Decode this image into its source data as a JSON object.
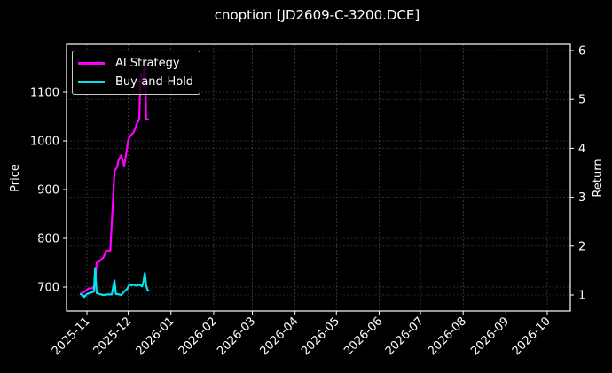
{
  "chart_data": {
    "type": "line",
    "title": "cnoption [JD2609-C-3200.DCE]",
    "xlabel": "",
    "ylabel": "Price",
    "ylabel_right": "Return",
    "ylim": [
      652,
      1192
    ],
    "ylim_right": [
      0.69,
      6.08
    ],
    "grid": true,
    "legend_position": "upper left",
    "x_ticks": [
      "2025-11",
      "2025-12",
      "2026-01",
      "2026-02",
      "2026-03",
      "2026-04",
      "2026-05",
      "2026-06",
      "2026-07",
      "2026-08",
      "2026-09",
      "2026-10"
    ],
    "y_ticks": [
      700,
      800,
      900,
      1000,
      1100
    ],
    "y_ticks_right": [
      1,
      2,
      3,
      4,
      5,
      6
    ],
    "series": [
      {
        "name": "AI Strategy",
        "color": "#ff00ff",
        "axis": "right",
        "x": [
          "2025-10-27",
          "2025-10-30",
          "2025-11-02",
          "2025-11-05",
          "2025-11-07",
          "2025-11-08",
          "2025-11-10",
          "2025-11-13",
          "2025-11-15",
          "2025-11-18",
          "2025-11-21",
          "2025-11-23",
          "2025-11-24",
          "2025-11-26",
          "2025-11-28",
          "2025-11-30",
          "2025-12-01",
          "2025-12-02",
          "2025-12-03",
          "2025-12-05",
          "2025-12-07",
          "2025-12-09",
          "2025-12-10",
          "2025-12-12",
          "2025-12-13",
          "2025-12-14",
          "2025-12-15",
          "2025-12-16"
        ],
        "values": [
          1.02,
          1.06,
          1.13,
          1.14,
          1.22,
          1.66,
          1.69,
          1.77,
          1.91,
          1.91,
          3.53,
          3.62,
          3.76,
          3.86,
          3.64,
          3.98,
          4.17,
          4.23,
          4.27,
          4.33,
          4.48,
          4.59,
          5.53,
          5.28,
          5.88,
          4.59,
          4.59,
          4.59
        ]
      },
      {
        "name": "Buy-and-Hold",
        "color": "#00e5ee",
        "axis": "right",
        "x": [
          "2025-10-27",
          "2025-10-29",
          "2025-10-30",
          "2025-11-01",
          "2025-11-04",
          "2025-11-06",
          "2025-11-07",
          "2025-11-08",
          "2025-11-10",
          "2025-11-13",
          "2025-11-16",
          "2025-11-19",
          "2025-11-21",
          "2025-11-22",
          "2025-11-23",
          "2025-11-26",
          "2025-11-28",
          "2025-11-30",
          "2025-12-02",
          "2025-12-03",
          "2025-12-05",
          "2025-12-07",
          "2025-12-09",
          "2025-12-11",
          "2025-12-12",
          "2025-12-13",
          "2025-12-14",
          "2025-12-15",
          "2025-12-16"
        ],
        "values": [
          1.02,
          1.0,
          0.96,
          1.02,
          1.05,
          1.07,
          1.55,
          1.04,
          1.02,
          1.0,
          1.01,
          1.01,
          1.3,
          1.02,
          1.02,
          1.0,
          1.07,
          1.12,
          1.22,
          1.2,
          1.21,
          1.19,
          1.21,
          1.18,
          1.27,
          1.45,
          1.2,
          1.1,
          1.08
        ]
      }
    ]
  },
  "legend": {
    "items": [
      {
        "label": "AI Strategy",
        "color": "#ff00ff"
      },
      {
        "label": "Buy-and-Hold",
        "color": "#00e5ee"
      }
    ]
  }
}
